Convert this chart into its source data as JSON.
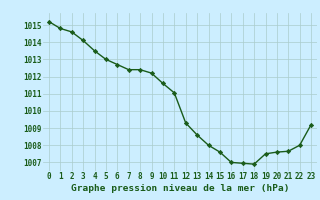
{
  "x": [
    0,
    1,
    2,
    3,
    4,
    5,
    6,
    7,
    8,
    9,
    10,
    11,
    12,
    13,
    14,
    15,
    16,
    17,
    18,
    19,
    20,
    21,
    22,
    23
  ],
  "y": [
    1015.2,
    1014.8,
    1014.6,
    1014.1,
    1013.5,
    1013.0,
    1012.7,
    1012.4,
    1012.4,
    1012.2,
    1011.6,
    1011.05,
    1009.3,
    1008.6,
    1008.0,
    1007.6,
    1007.0,
    1006.95,
    1006.9,
    1007.5,
    1007.6,
    1007.65,
    1008.0,
    1009.2
  ],
  "line_color": "#1a5c1a",
  "marker": "D",
  "marker_size": 2.2,
  "bg_color": "#cceeff",
  "grid_color": "#aacccc",
  "xlabel": "Graphe pression niveau de la mer (hPa)",
  "xlabel_color": "#1a5c1a",
  "tick_color": "#1a5c1a",
  "ylim": [
    1006.5,
    1015.7
  ],
  "yticks": [
    1007,
    1008,
    1009,
    1010,
    1011,
    1012,
    1013,
    1014,
    1015
  ],
  "xticks": [
    0,
    1,
    2,
    3,
    4,
    5,
    6,
    7,
    8,
    9,
    10,
    11,
    12,
    13,
    14,
    15,
    16,
    17,
    18,
    19,
    20,
    21,
    22,
    23
  ],
  "line_width": 1.0,
  "tick_fontsize": 5.5,
  "xlabel_fontsize": 6.8
}
